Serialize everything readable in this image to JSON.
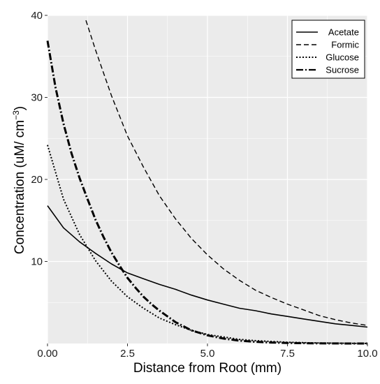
{
  "chart_data": {
    "type": "line",
    "title": "",
    "xlabel": "Distance from Root (mm)",
    "ylabel": "Concentration (uM/ cm",
    "ylabel_superscript": "−3",
    "ylabel_close": ")",
    "xlim": [
      0,
      10
    ],
    "ylim": [
      0,
      40
    ],
    "x_ticks": [
      0,
      2.5,
      5,
      7.5,
      10
    ],
    "x_tick_labels": [
      "0.00",
      "2.5",
      "5.0",
      "7.5",
      "10.0"
    ],
    "y_ticks": [
      10,
      20,
      30,
      40
    ],
    "y_tick_labels": [
      "10",
      "20",
      "30",
      "40"
    ],
    "grid": true,
    "background": "#ebebeb",
    "grid_color": "#ffffff",
    "legend_position": "top-right",
    "series": [
      {
        "name": "Acetate",
        "dash": "solid",
        "x": [
          0,
          0.5,
          1,
          1.5,
          2,
          2.5,
          3,
          3.5,
          4,
          4.5,
          5,
          5.5,
          6,
          6.5,
          7,
          7.5,
          8,
          8.5,
          9,
          9.5,
          10
        ],
        "y": [
          16.8,
          14.1,
          12.4,
          11.0,
          9.7,
          8.6,
          7.9,
          7.2,
          6.6,
          5.9,
          5.3,
          4.8,
          4.3,
          4.0,
          3.6,
          3.3,
          3.0,
          2.7,
          2.4,
          2.2,
          2.0
        ]
      },
      {
        "name": "Formic",
        "dash": "dashed",
        "x": [
          1.2,
          1.5,
          2,
          2.5,
          3,
          3.5,
          4,
          4.5,
          5,
          5.5,
          6,
          6.5,
          7,
          7.5,
          8,
          8.5,
          9,
          9.5,
          10
        ],
        "y": [
          39.4,
          35.8,
          30.2,
          25.3,
          21.5,
          18.0,
          15.2,
          12.8,
          10.8,
          9.1,
          7.7,
          6.5,
          5.6,
          4.8,
          4.1,
          3.4,
          2.9,
          2.5,
          2.2
        ]
      },
      {
        "name": "Glucose",
        "dash": "dotted",
        "x": [
          0,
          0.5,
          1,
          1.5,
          2,
          2.5,
          3,
          3.5,
          4,
          4.5,
          5,
          5.5,
          6,
          6.5,
          7,
          7.5,
          8,
          8.5,
          9,
          9.5,
          10
        ],
        "y": [
          24.2,
          17.6,
          13.3,
          10.1,
          7.6,
          5.7,
          4.3,
          3.1,
          2.3,
          1.6,
          1.1,
          0.8,
          0.5,
          0.35,
          0.25,
          0.15,
          0.1,
          0.06,
          0.04,
          0.02,
          0.01
        ]
      },
      {
        "name": "Sucrose",
        "dash": "dot-dash",
        "x": [
          0,
          0.25,
          0.5,
          0.75,
          1,
          1.25,
          1.5,
          1.75,
          2,
          2.25,
          2.5,
          2.75,
          3,
          3.25,
          3.5,
          3.75,
          4,
          4.5,
          5,
          5.5,
          6,
          6.5,
          7,
          7.5,
          8,
          8.5,
          9,
          9.5,
          10
        ],
        "y": [
          36.9,
          31.2,
          26.8,
          23.2,
          20.2,
          17.6,
          15.1,
          13.0,
          11.1,
          9.5,
          8.0,
          6.8,
          5.7,
          4.8,
          4.0,
          3.3,
          2.6,
          1.6,
          1.0,
          0.6,
          0.35,
          0.2,
          0.12,
          0.07,
          0.04,
          0.02,
          0.01,
          0.0,
          0.0
        ]
      }
    ]
  }
}
